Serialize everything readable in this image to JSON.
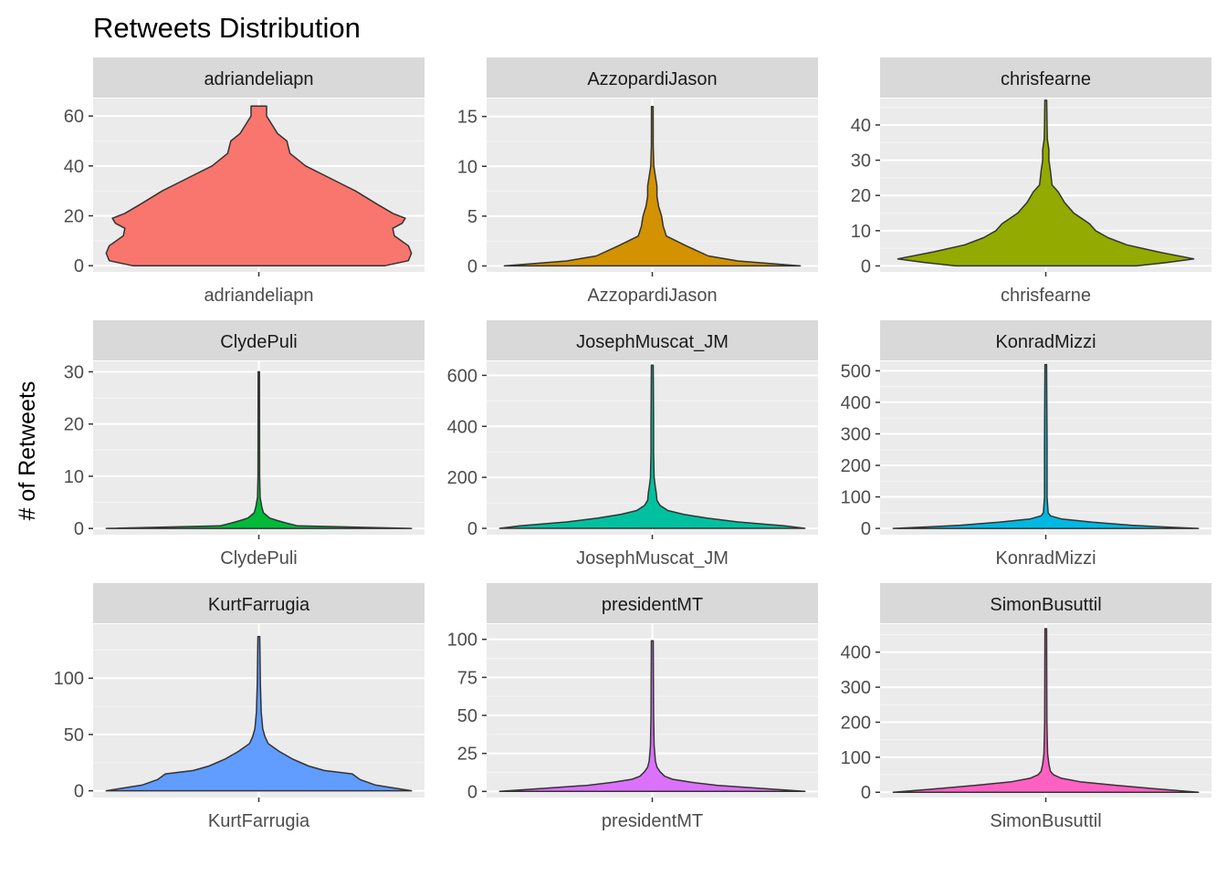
{
  "chart_data": {
    "type": "violin",
    "title": "Retweets Distribution",
    "ylabel": "# of Retweets",
    "xlabel": "",
    "grid": true,
    "legend": "none",
    "panels": [
      {
        "name": "adriandeliapn",
        "color": "#F8766D",
        "yticks": [
          0,
          20,
          40,
          60
        ],
        "ylim": [
          -2.5,
          67
        ],
        "widths": [
          [
            0,
            0.81
          ],
          [
            2,
            0.96
          ],
          [
            5,
            0.98
          ],
          [
            8,
            0.96
          ],
          [
            12,
            0.87
          ],
          [
            15,
            0.86
          ],
          [
            17,
            0.92
          ],
          [
            19,
            0.94
          ],
          [
            21,
            0.86
          ],
          [
            25,
            0.75
          ],
          [
            30,
            0.62
          ],
          [
            35,
            0.46
          ],
          [
            40,
            0.3
          ],
          [
            45,
            0.2
          ],
          [
            50,
            0.18
          ],
          [
            53,
            0.12
          ],
          [
            56,
            0.09
          ],
          [
            60,
            0.05
          ],
          [
            64,
            0.05
          ]
        ]
      },
      {
        "name": "AzzopardiJason",
        "color": "#D39200",
        "yticks": [
          0,
          5,
          10,
          15
        ],
        "ylim": [
          -0.6,
          16.8
        ],
        "widths": [
          [
            0,
            0.95
          ],
          [
            0.5,
            0.55
          ],
          [
            1,
            0.36
          ],
          [
            2,
            0.22
          ],
          [
            3,
            0.09
          ],
          [
            4,
            0.07
          ],
          [
            5,
            0.06
          ],
          [
            6,
            0.04
          ],
          [
            7,
            0.03
          ],
          [
            8,
            0.03
          ],
          [
            9,
            0.02
          ],
          [
            10,
            0.01
          ],
          [
            12,
            0.006
          ],
          [
            16,
            0.005
          ]
        ]
      },
      {
        "name": "chrisfearne",
        "color": "#93AA00",
        "yticks": [
          0,
          10,
          20,
          30,
          40
        ],
        "ylim": [
          -1.7,
          47.5
        ],
        "widths": [
          [
            0,
            0.58
          ],
          [
            1,
            0.78
          ],
          [
            2,
            0.95
          ],
          [
            4,
            0.72
          ],
          [
            6,
            0.52
          ],
          [
            8,
            0.4
          ],
          [
            10,
            0.32
          ],
          [
            12,
            0.28
          ],
          [
            15,
            0.18
          ],
          [
            18,
            0.12
          ],
          [
            21,
            0.08
          ],
          [
            23,
            0.04
          ],
          [
            27,
            0.03
          ],
          [
            30,
            0.02
          ],
          [
            33,
            0.02
          ],
          [
            36,
            0.01
          ],
          [
            40,
            0.008
          ],
          [
            47,
            0.006
          ]
        ]
      },
      {
        "name": "ClydePuli",
        "color": "#00BA38",
        "yticks": [
          0,
          10,
          20,
          30
        ],
        "ylim": [
          -1.2,
          32
        ],
        "widths": [
          [
            0,
            0.98
          ],
          [
            0.5,
            0.25
          ],
          [
            1,
            0.18
          ],
          [
            1.5,
            0.12
          ],
          [
            2,
            0.07
          ],
          [
            3,
            0.03
          ],
          [
            4,
            0.02
          ],
          [
            6,
            0.008
          ],
          [
            10,
            0.005
          ],
          [
            30,
            0.004
          ]
        ]
      },
      {
        "name": "JosephMuscat_JM",
        "color": "#00C19F",
        "yticks": [
          0,
          200,
          400,
          600
        ],
        "ylim": [
          -25,
          655
        ],
        "widths": [
          [
            0,
            0.98
          ],
          [
            10,
            0.85
          ],
          [
            25,
            0.55
          ],
          [
            40,
            0.35
          ],
          [
            55,
            0.2
          ],
          [
            70,
            0.1
          ],
          [
            90,
            0.05
          ],
          [
            110,
            0.03
          ],
          [
            140,
            0.025
          ],
          [
            160,
            0.02
          ],
          [
            200,
            0.012
          ],
          [
            300,
            0.008
          ],
          [
            410,
            0.008
          ],
          [
            640,
            0.006
          ]
        ]
      },
      {
        "name": "KonradMizzi",
        "color": "#00B9E3",
        "yticks": [
          0,
          100,
          200,
          300,
          400,
          500
        ],
        "ylim": [
          -20,
          530
        ],
        "widths": [
          [
            0,
            0.98
          ],
          [
            5,
            0.75
          ],
          [
            10,
            0.55
          ],
          [
            20,
            0.3
          ],
          [
            30,
            0.1
          ],
          [
            40,
            0.03
          ],
          [
            50,
            0.015
          ],
          [
            100,
            0.008
          ],
          [
            265,
            0.008
          ],
          [
            520,
            0.005
          ]
        ]
      },
      {
        "name": "KurtFarrugia",
        "color": "#619CFF",
        "yticks": [
          0,
          50,
          100
        ],
        "ylim": [
          -6,
          148
        ],
        "widths": [
          [
            0,
            0.98
          ],
          [
            5,
            0.75
          ],
          [
            10,
            0.65
          ],
          [
            15,
            0.6
          ],
          [
            18,
            0.42
          ],
          [
            22,
            0.32
          ],
          [
            28,
            0.22
          ],
          [
            35,
            0.13
          ],
          [
            42,
            0.06
          ],
          [
            48,
            0.04
          ],
          [
            55,
            0.025
          ],
          [
            70,
            0.015
          ],
          [
            95,
            0.01
          ],
          [
            137,
            0.006
          ]
        ]
      },
      {
        "name": "presidentMT",
        "color": "#DB72FB",
        "yticks": [
          0,
          25,
          50,
          75,
          100
        ],
        "ylim": [
          -4,
          110
        ],
        "widths": [
          [
            0,
            0.98
          ],
          [
            2,
            0.7
          ],
          [
            4,
            0.42
          ],
          [
            6,
            0.25
          ],
          [
            8,
            0.13
          ],
          [
            10,
            0.08
          ],
          [
            13,
            0.05
          ],
          [
            16,
            0.03
          ],
          [
            20,
            0.02
          ],
          [
            30,
            0.012
          ],
          [
            50,
            0.008
          ],
          [
            99,
            0.006
          ]
        ]
      },
      {
        "name": "SimonBusuttil",
        "color": "#FF61C3",
        "yticks": [
          0,
          100,
          200,
          300,
          400
        ],
        "ylim": [
          -15,
          480
        ],
        "widths": [
          [
            0,
            0.98
          ],
          [
            10,
            0.7
          ],
          [
            20,
            0.45
          ],
          [
            30,
            0.22
          ],
          [
            40,
            0.1
          ],
          [
            50,
            0.05
          ],
          [
            60,
            0.03
          ],
          [
            80,
            0.02
          ],
          [
            110,
            0.012
          ],
          [
            200,
            0.007
          ],
          [
            467,
            0.005
          ]
        ]
      }
    ]
  }
}
